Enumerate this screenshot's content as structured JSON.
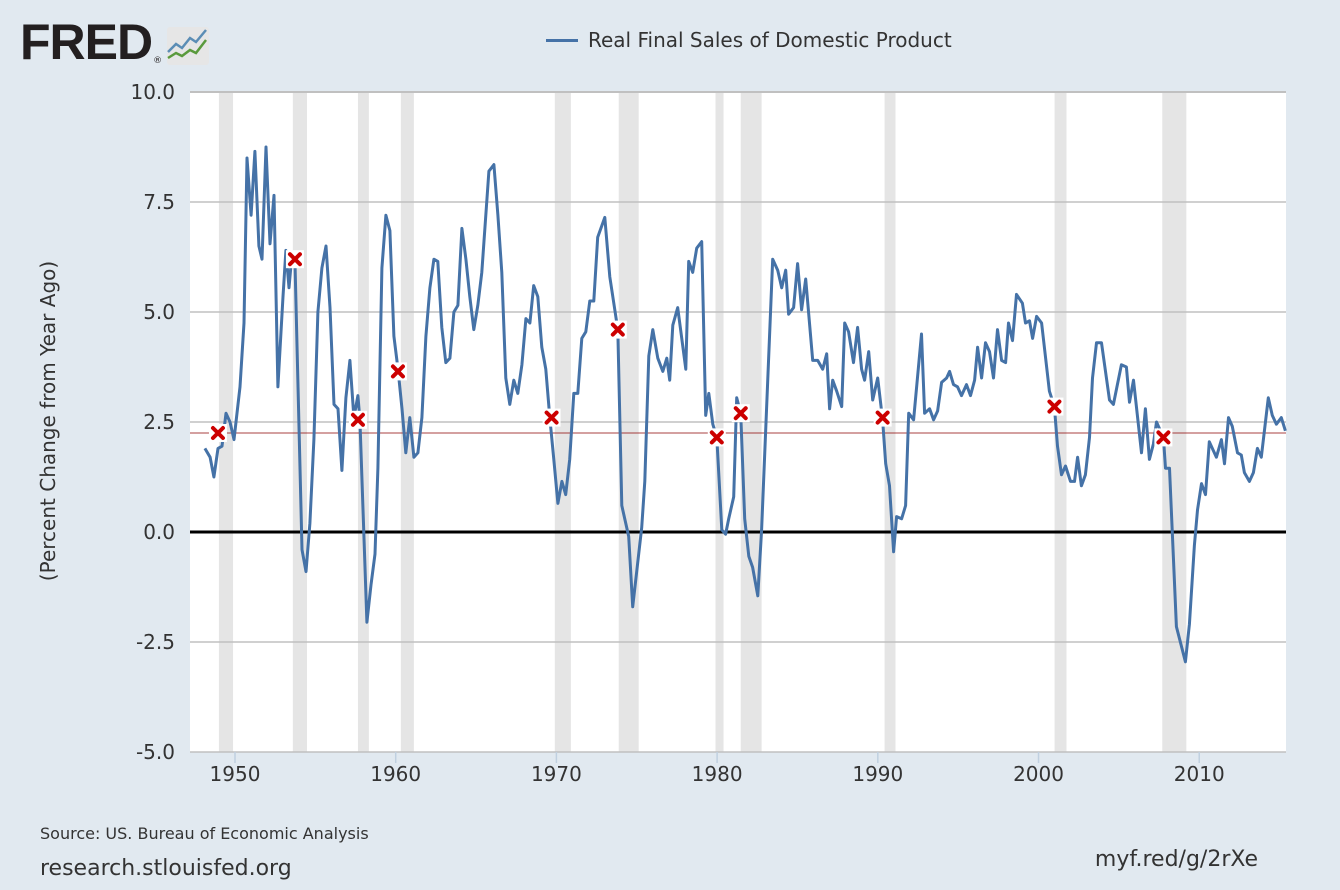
{
  "header": {
    "logo": "FRED",
    "logo_mark": "®"
  },
  "footer": {
    "source": "Source: US. Bureau of Economic Analysis",
    "site": "research.stlouisfed.org",
    "shortlink": "myf.red/g/2rXe"
  },
  "colors": {
    "background": "#e1e9f0",
    "series": "#4572a7",
    "recession": "#e5e5e5",
    "marker": "#cc0000",
    "mean_line": "#8b0000",
    "zero_line": "#000000"
  },
  "chart_data": {
    "type": "line",
    "title": "",
    "legend": [
      "Real Final Sales of Domestic Product"
    ],
    "legend_position": "top-center",
    "xlabel": "",
    "ylabel": "(Percent Change from Year Ago)",
    "xlim": [
      1947.2,
      2015.4
    ],
    "ylim": [
      -5,
      10
    ],
    "grid": true,
    "y_ticks": [
      "-5.0",
      "-2.5",
      "0.0",
      "2.5",
      "5.0",
      "7.5",
      "10.0"
    ],
    "y_tick_values": [
      -5,
      -2.5,
      0,
      2.5,
      5,
      7.5,
      10
    ],
    "x_ticks": [
      "1950",
      "1960",
      "1970",
      "1980",
      "1990",
      "2000",
      "2010"
    ],
    "x_tick_values": [
      1950,
      1960,
      1970,
      1980,
      1990,
      2000,
      2010
    ],
    "reference_line": 2.25,
    "recessions": [
      [
        1949.0,
        1949.88
      ],
      [
        1953.6,
        1954.48
      ],
      [
        1957.65,
        1958.33
      ],
      [
        1960.32,
        1961.13
      ],
      [
        1969.9,
        1970.9
      ],
      [
        1973.88,
        1975.12
      ],
      [
        1979.9,
        1980.4
      ],
      [
        1981.47,
        1982.77
      ],
      [
        1990.42,
        1991.1
      ],
      [
        2001.0,
        2001.74
      ],
      [
        2007.7,
        2009.2
      ]
    ],
    "markers": [
      [
        1948.94,
        2.25
      ],
      [
        1953.73,
        6.2
      ],
      [
        1957.65,
        2.55
      ],
      [
        1960.14,
        3.65
      ],
      [
        1969.7,
        2.6
      ],
      [
        1973.82,
        4.6
      ],
      [
        1979.98,
        2.15
      ],
      [
        1981.47,
        2.7
      ],
      [
        1990.3,
        2.6
      ],
      [
        2000.99,
        2.85
      ],
      [
        2007.77,
        2.15
      ]
    ],
    "series": [
      {
        "name": "Real Final Sales of Domestic Product",
        "x": [
          1948.13,
          1948.45,
          1948.69,
          1948.94,
          1949.19,
          1949.44,
          1949.69,
          1949.94,
          1950.31,
          1950.56,
          1950.75,
          1951.0,
          1951.24,
          1951.49,
          1951.68,
          1951.93,
          1952.18,
          1952.43,
          1952.67,
          1952.99,
          1953.17,
          1953.36,
          1953.54,
          1953.73,
          1954.17,
          1954.42,
          1954.66,
          1954.91,
          1955.16,
          1955.41,
          1955.66,
          1955.91,
          1956.16,
          1956.41,
          1956.65,
          1956.9,
          1957.15,
          1957.4,
          1957.65,
          1957.77,
          1958.21,
          1958.46,
          1958.71,
          1958.89,
          1959.14,
          1959.39,
          1959.64,
          1959.89,
          1960.14,
          1960.39,
          1960.63,
          1960.88,
          1961.13,
          1961.38,
          1961.63,
          1961.88,
          1962.13,
          1962.38,
          1962.62,
          1962.87,
          1963.12,
          1963.37,
          1963.62,
          1963.87,
          1964.12,
          1964.37,
          1964.61,
          1964.86,
          1965.11,
          1965.36,
          1965.8,
          1966.11,
          1966.36,
          1966.6,
          1966.85,
          1967.1,
          1967.35,
          1967.6,
          1967.85,
          1968.1,
          1968.35,
          1968.59,
          1968.84,
          1969.09,
          1969.34,
          1969.59,
          1969.84,
          1970.09,
          1970.34,
          1970.58,
          1970.83,
          1971.08,
          1971.33,
          1971.58,
          1971.83,
          1972.08,
          1972.33,
          1972.57,
          1973.01,
          1973.32,
          1973.57,
          1973.82,
          1974.07,
          1974.5,
          1974.75,
          1975.31,
          1975.5,
          1975.75,
          1976.0,
          1976.31,
          1976.62,
          1976.87,
          1977.05,
          1977.24,
          1977.55,
          1978.05,
          1978.23,
          1978.48,
          1978.73,
          1979.04,
          1979.29,
          1979.48,
          1979.73,
          1979.98,
          1980.29,
          1980.53,
          1980.72,
          1981.03,
          1981.22,
          1981.47,
          1981.72,
          1981.97,
          1982.21,
          1982.53,
          1982.77,
          1983.46,
          1983.77,
          1984.02,
          1984.27,
          1984.45,
          1984.76,
          1985.01,
          1985.26,
          1985.51,
          1985.95,
          1986.26,
          1986.57,
          1986.82,
          1987.0,
          1987.19,
          1987.44,
          1987.75,
          1987.94,
          1988.18,
          1988.49,
          1988.74,
          1988.99,
          1989.18,
          1989.43,
          1989.68,
          1989.99,
          1990.3,
          1990.49,
          1990.73,
          1990.98,
          1991.17,
          1991.48,
          1991.73,
          1991.92,
          1992.23,
          1992.72,
          1992.91,
          1993.22,
          1993.47,
          1993.72,
          1993.97,
          1994.28,
          1994.47,
          1994.71,
          1994.96,
          1995.21,
          1995.52,
          1995.77,
          1996.02,
          1996.21,
          1996.46,
          1996.7,
          1996.95,
          1997.2,
          1997.45,
          1997.7,
          1997.95,
          1998.13,
          1998.38,
          1998.63,
          1999.0,
          1999.19,
          1999.44,
          1999.63,
          1999.88,
          2000.19,
          2000.68,
          2000.99,
          2001.18,
          2001.43,
          2001.68,
          2001.99,
          2002.24,
          2002.43,
          2002.67,
          2002.92,
          2003.17,
          2003.36,
          2003.61,
          2003.92,
          2004.42,
          2004.66,
          2004.91,
          2005.16,
          2005.47,
          2005.66,
          2005.91,
          2006.41,
          2006.65,
          2006.9,
          2007.15,
          2007.34,
          2007.77,
          2007.9,
          2008.15,
          2008.58,
          2009.14,
          2009.39,
          2009.7,
          2009.89,
          2010.14,
          2010.39,
          2010.63,
          2011.07,
          2011.38,
          2011.57,
          2011.82,
          2012.06,
          2012.38,
          2012.62,
          2012.81,
          2013.12,
          2013.37,
          2013.62,
          2013.86,
          2014.3,
          2014.55,
          2014.8,
          2015.11,
          2015.36
        ],
        "y": [
          1.9,
          1.7,
          1.25,
          1.9,
          1.95,
          2.7,
          2.5,
          2.1,
          3.3,
          4.75,
          8.5,
          7.2,
          8.65,
          6.5,
          6.2,
          8.75,
          6.55,
          7.65,
          3.3,
          5.35,
          6.4,
          5.55,
          6.3,
          6.2,
          -0.4,
          -0.9,
          0.2,
          2.1,
          5.0,
          6.0,
          6.5,
          5.1,
          2.9,
          2.8,
          1.4,
          3.05,
          3.9,
          2.6,
          3.1,
          2.55,
          -2.05,
          -1.2,
          -0.5,
          1.45,
          6.0,
          7.2,
          6.85,
          4.45,
          3.7,
          2.8,
          1.8,
          2.6,
          1.7,
          1.8,
          2.6,
          4.45,
          5.55,
          6.2,
          6.15,
          4.65,
          3.85,
          3.95,
          5.0,
          5.15,
          6.9,
          6.2,
          5.35,
          4.6,
          5.15,
          5.9,
          8.2,
          8.35,
          7.2,
          5.9,
          3.5,
          2.9,
          3.45,
          3.15,
          3.8,
          4.85,
          4.75,
          5.6,
          5.35,
          4.2,
          3.7,
          2.6,
          1.65,
          0.65,
          1.15,
          0.85,
          1.65,
          3.15,
          3.15,
          4.4,
          4.55,
          5.25,
          5.25,
          6.7,
          7.15,
          5.8,
          5.2,
          4.6,
          0.6,
          -0.1,
          -1.7,
          0.1,
          1.15,
          4.0,
          4.6,
          3.95,
          3.65,
          3.95,
          3.45,
          4.7,
          5.1,
          3.7,
          6.15,
          5.9,
          6.45,
          6.6,
          2.65,
          3.15,
          2.45,
          2.15,
          0.05,
          -0.05,
          0.3,
          0.8,
          3.05,
          2.7,
          0.3,
          -0.55,
          -0.8,
          -1.45,
          0.05,
          6.2,
          5.95,
          5.55,
          5.95,
          4.95,
          5.1,
          6.1,
          5.05,
          5.75,
          3.9,
          3.9,
          3.7,
          4.05,
          2.8,
          3.45,
          3.2,
          2.85,
          4.75,
          4.55,
          3.85,
          4.65,
          3.7,
          3.45,
          4.1,
          3.0,
          3.5,
          2.55,
          1.55,
          1.05,
          -0.45,
          0.35,
          0.3,
          0.6,
          2.7,
          2.55,
          4.5,
          2.7,
          2.8,
          2.55,
          2.75,
          3.4,
          3.5,
          3.65,
          3.35,
          3.3,
          3.1,
          3.35,
          3.1,
          3.45,
          4.2,
          3.5,
          4.3,
          4.1,
          3.5,
          4.6,
          3.9,
          3.85,
          4.75,
          4.35,
          5.4,
          5.2,
          4.75,
          4.8,
          4.4,
          4.9,
          4.75,
          3.2,
          2.85,
          1.95,
          1.3,
          1.5,
          1.15,
          1.15,
          1.7,
          1.05,
          1.3,
          2.15,
          3.5,
          4.3,
          4.3,
          3.0,
          2.9,
          3.35,
          3.8,
          3.75,
          2.95,
          3.45,
          1.8,
          2.8,
          1.65,
          2.0,
          2.5,
          2.15,
          1.45,
          1.45,
          -2.15,
          -2.95,
          -2.1,
          -0.3,
          0.5,
          1.1,
          0.85,
          2.05,
          1.7,
          2.1,
          1.55,
          2.6,
          2.4,
          1.8,
          1.75,
          1.35,
          1.15,
          1.35,
          1.9,
          1.7,
          3.05,
          2.65,
          2.45,
          2.6,
          2.3
        ]
      }
    ]
  }
}
